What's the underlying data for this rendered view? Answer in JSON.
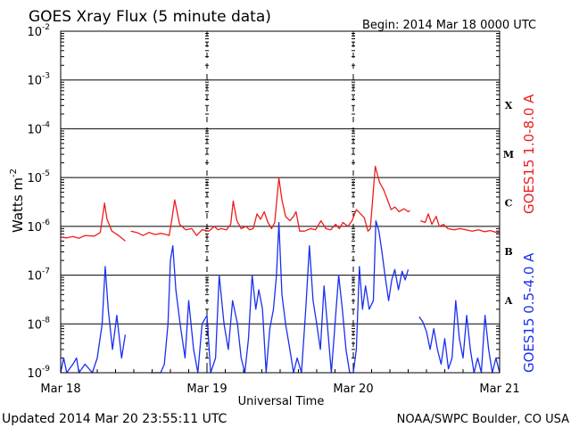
{
  "header": {
    "title": "GOES Xray Flux (5 minute data)",
    "begin_label": "Begin:  2014 Mar 18 0000 UTC"
  },
  "footer": {
    "updated": "Updated 2014 Mar 20 23:55:11 UTC",
    "credit": "NOAA/SWPC Boulder, CO USA"
  },
  "chart_data": {
    "type": "line",
    "title": "GOES Xray Flux (5 minute data)",
    "xlabel": "Universal Time",
    "ylabel_base": "Watts m",
    "ylabel_exp": "-2",
    "x_ticks": [
      "Mar 18",
      "Mar 19",
      "Mar 20",
      "Mar 21"
    ],
    "xlim_hours": [
      0,
      72
    ],
    "y_scale": "log",
    "ylim": [
      1e-09,
      0.01
    ],
    "y_tick_exponents": [
      -2,
      -3,
      -4,
      -5,
      -6,
      -7,
      -8,
      -9
    ],
    "flare_classes": [
      {
        "label": "X",
        "level": 0.0001
      },
      {
        "label": "M",
        "level": 1e-05
      },
      {
        "label": "C",
        "level": 1e-06
      },
      {
        "label": "B",
        "level": 1e-07
      },
      {
        "label": "A",
        "level": 1e-08
      }
    ],
    "grid": true,
    "colors": {
      "long": "#ee1c1c",
      "short": "#1a2ff0",
      "axes": "#000000"
    },
    "series": [
      {
        "name": "GOES15 1.0-8.0 A",
        "color": "#ee1c1c",
        "points": [
          [
            0.0,
            6e-07
          ],
          [
            1.0,
            5.8e-07
          ],
          [
            2.0,
            6.2e-07
          ],
          [
            3.0,
            5.7e-07
          ],
          [
            4.0,
            6.5e-07
          ],
          [
            5.5,
            6.3e-07
          ],
          [
            6.5,
            7.5e-07
          ],
          [
            7.2,
            3e-06
          ],
          [
            7.6,
            1.4e-06
          ],
          [
            8.4,
            8e-07
          ],
          [
            9.5,
            6.5e-07
          ],
          [
            10.6,
            5e-07
          ],
          null,
          [
            11.5,
            8e-07
          ],
          [
            12.5,
            7.5e-07
          ],
          [
            13.5,
            6.5e-07
          ],
          [
            14.5,
            7.5e-07
          ],
          [
            15.5,
            6.8e-07
          ],
          [
            16.5,
            7.2e-07
          ],
          [
            17.3,
            6.8e-07
          ],
          [
            17.8,
            6.5e-07
          ],
          [
            18.2,
            1.3e-06
          ],
          [
            18.7,
            3.5e-06
          ],
          [
            19.5,
            1.1e-06
          ],
          [
            20.5,
            8.5e-07
          ],
          [
            21.5,
            9e-07
          ],
          [
            22.3,
            6.5e-07
          ],
          [
            23.2,
            8.5e-07
          ],
          [
            24.3,
            8e-07
          ],
          [
            25.2,
            1e-06
          ],
          [
            25.8,
            8.5e-07
          ],
          [
            26.3,
            9e-07
          ],
          [
            27.2,
            8.5e-07
          ],
          [
            27.9,
            1.1e-06
          ],
          [
            28.3,
            3.3e-06
          ],
          [
            28.9,
            1.3e-06
          ],
          [
            29.6,
            9e-07
          ],
          [
            30.4,
            1e-06
          ],
          [
            31.0,
            8.5e-07
          ],
          [
            31.6,
            9e-07
          ],
          [
            32.2,
            1.8e-06
          ],
          [
            32.8,
            1.4e-06
          ],
          [
            33.4,
            2e-06
          ],
          [
            34.0,
            1.2e-06
          ],
          [
            34.6,
            9e-07
          ],
          [
            35.1,
            1.2e-06
          ],
          [
            35.8,
            9.8e-06
          ],
          [
            36.3,
            3.5e-06
          ],
          [
            36.9,
            1.6e-06
          ],
          [
            37.6,
            1.3e-06
          ],
          [
            38.2,
            1.6e-06
          ],
          [
            38.6,
            2e-06
          ],
          [
            39.2,
            8e-07
          ],
          [
            40.0,
            8e-07
          ],
          [
            41.0,
            9e-07
          ],
          [
            41.8,
            8.5e-07
          ],
          [
            42.7,
            1.3e-06
          ],
          [
            43.5,
            9e-07
          ],
          [
            44.3,
            8.5e-07
          ],
          [
            45.1,
            1.1e-06
          ],
          [
            45.7,
            9e-07
          ],
          [
            46.3,
            1.2e-06
          ],
          [
            47.1,
            1e-06
          ],
          [
            47.8,
            1.3e-06
          ],
          [
            48.5,
            2.2e-06
          ],
          [
            49.2,
            1.8e-06
          ],
          [
            49.8,
            1.5e-06
          ],
          [
            50.4,
            8e-07
          ],
          [
            50.8,
            9e-07
          ],
          [
            51.2,
            4e-06
          ],
          [
            51.6,
            1.7e-05
          ],
          [
            52.3,
            8e-06
          ],
          [
            53.0,
            5.5e-06
          ],
          [
            53.6,
            3.5e-06
          ],
          [
            54.2,
            2.2e-06
          ],
          [
            54.8,
            2.5e-06
          ],
          [
            55.5,
            2e-06
          ],
          [
            56.3,
            2.3e-06
          ],
          [
            57.0,
            2e-06
          ],
          [
            57.3,
            2.1e-06
          ],
          null,
          [
            59.0,
            1.3e-06
          ],
          [
            59.8,
            1.2e-06
          ],
          [
            60.3,
            1.8e-06
          ],
          [
            60.9,
            1.1e-06
          ],
          [
            61.6,
            1.6e-06
          ],
          [
            62.1,
            1e-06
          ],
          [
            62.8,
            1.1e-06
          ],
          [
            63.5,
            9e-07
          ],
          [
            64.5,
            8.5e-07
          ],
          [
            65.5,
            9e-07
          ],
          [
            66.5,
            8.5e-07
          ],
          [
            67.5,
            8e-07
          ],
          [
            68.5,
            8.5e-07
          ],
          [
            69.5,
            7.8e-07
          ],
          [
            70.5,
            8.2e-07
          ],
          [
            71.5,
            7.5e-07
          ],
          [
            72.0,
            7.5e-07
          ]
        ]
      },
      {
        "name": "GOES15 0.5-4.0 A",
        "color": "#1a2ff0",
        "points": [
          [
            0.0,
            1e-09
          ],
          [
            0.5,
            2e-09
          ],
          [
            1.0,
            1e-09
          ],
          [
            2.0,
            1.5e-09
          ],
          [
            2.6,
            2e-09
          ],
          [
            3.0,
            1e-09
          ],
          [
            4.0,
            1.5e-09
          ],
          [
            5.2,
            1e-09
          ],
          [
            6.0,
            2e-09
          ],
          [
            6.8,
            1e-08
          ],
          [
            7.3,
            1.5e-07
          ],
          [
            7.8,
            2e-08
          ],
          [
            8.5,
            3e-09
          ],
          [
            9.2,
            1.5e-08
          ],
          [
            10.0,
            2e-09
          ],
          [
            10.6,
            6e-09
          ],
          null,
          [
            14.8,
            1e-09
          ],
          [
            15.6,
            1e-09
          ],
          [
            16.4,
            1e-09
          ],
          [
            17.0,
            1.5e-09
          ],
          [
            17.6,
            1e-08
          ],
          [
            18.0,
            2e-07
          ],
          [
            18.4,
            4e-07
          ],
          [
            18.9,
            5e-08
          ],
          [
            19.6,
            1e-08
          ],
          [
            20.4,
            2e-09
          ],
          [
            21.0,
            3e-08
          ],
          [
            21.8,
            3e-09
          ],
          [
            22.5,
            1e-09
          ],
          [
            23.2,
            1e-08
          ],
          [
            24.0,
            1.5e-08
          ],
          [
            24.6,
            1e-09
          ],
          [
            25.4,
            2e-09
          ],
          [
            26.0,
            1e-07
          ],
          [
            26.8,
            1e-08
          ],
          [
            27.5,
            3e-09
          ],
          [
            28.2,
            3e-08
          ],
          [
            29.0,
            1e-08
          ],
          [
            29.6,
            2e-09
          ],
          [
            30.2,
            1e-09
          ],
          [
            30.8,
            5e-09
          ],
          [
            31.4,
            1e-07
          ],
          [
            32.0,
            2e-08
          ],
          [
            32.5,
            5e-08
          ],
          [
            33.1,
            2e-08
          ],
          [
            33.7,
            1e-09
          ],
          [
            34.3,
            8e-09
          ],
          [
            34.9,
            2e-08
          ],
          [
            35.4,
            1e-07
          ],
          [
            35.8,
            1.2e-06
          ],
          [
            36.3,
            4e-08
          ],
          [
            36.9,
            1e-08
          ],
          [
            37.6,
            3e-09
          ],
          [
            38.2,
            1e-09
          ],
          [
            38.8,
            2e-09
          ],
          [
            39.5,
            1e-09
          ],
          [
            40.2,
            2e-08
          ],
          [
            40.8,
            4e-07
          ],
          [
            41.4,
            3e-08
          ],
          [
            42.0,
            1e-08
          ],
          [
            42.6,
            3e-09
          ],
          [
            43.2,
            6e-08
          ],
          [
            43.8,
            8e-09
          ],
          [
            44.4,
            1e-09
          ],
          [
            45.0,
            1e-08
          ],
          [
            45.6,
            1e-07
          ],
          [
            46.2,
            2e-08
          ],
          [
            46.8,
            3e-09
          ],
          [
            47.4,
            1e-09
          ],
          [
            48.0,
            1e-09
          ],
          [
            48.5,
            3e-09
          ],
          [
            49.0,
            1.5e-07
          ],
          [
            49.5,
            2e-08
          ],
          [
            50.0,
            6e-08
          ],
          [
            50.6,
            2e-08
          ],
          [
            51.3,
            3e-08
          ],
          [
            51.7,
            1.3e-06
          ],
          [
            52.2,
            8e-07
          ],
          [
            52.7,
            3e-07
          ],
          [
            53.2,
            1e-07
          ],
          [
            53.8,
            3e-08
          ],
          [
            54.3,
            8e-08
          ],
          [
            54.8,
            1.3e-07
          ],
          [
            55.4,
            5e-08
          ],
          [
            56.0,
            1.2e-07
          ],
          [
            56.5,
            8e-08
          ],
          [
            57.0,
            1.3e-07
          ],
          null,
          [
            58.8,
            1.4e-08
          ],
          [
            59.4,
            1.1e-08
          ],
          [
            60.0,
            7e-09
          ],
          [
            60.6,
            3e-09
          ],
          [
            61.2,
            8e-09
          ],
          [
            61.8,
            3e-09
          ],
          [
            62.4,
            1.5e-09
          ],
          [
            63.0,
            5e-09
          ],
          [
            63.6,
            1.2e-09
          ],
          [
            64.2,
            2e-09
          ],
          [
            64.8,
            3e-08
          ],
          [
            65.4,
            5e-09
          ],
          [
            66.0,
            2e-09
          ],
          [
            66.6,
            1.5e-08
          ],
          [
            67.2,
            3e-09
          ],
          [
            67.8,
            1e-09
          ],
          [
            68.4,
            2e-09
          ],
          [
            69.0,
            1e-09
          ],
          [
            69.6,
            1.5e-08
          ],
          [
            70.2,
            3e-09
          ],
          [
            70.8,
            1e-09
          ],
          [
            71.4,
            2e-09
          ],
          [
            72.0,
            1e-09
          ]
        ]
      }
    ]
  }
}
